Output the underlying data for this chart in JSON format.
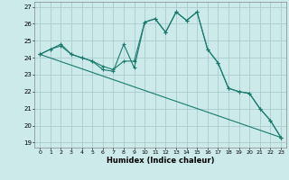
{
  "xlabel": "Humidex (Indice chaleur)",
  "bg_color": "#cceaea",
  "grid_color": "#aacccc",
  "line_color": "#1a7a6e",
  "xlim": [
    -0.5,
    23.5
  ],
  "ylim": [
    18.7,
    27.3
  ],
  "yticks": [
    19,
    20,
    21,
    22,
    23,
    24,
    25,
    26,
    27
  ],
  "xticks": [
    0,
    1,
    2,
    3,
    4,
    5,
    6,
    7,
    8,
    9,
    10,
    11,
    12,
    13,
    14,
    15,
    16,
    17,
    18,
    19,
    20,
    21,
    22,
    23
  ],
  "line1_x": [
    0,
    1,
    2,
    3,
    4,
    5,
    6,
    7,
    8,
    9,
    10,
    11,
    12,
    13,
    14,
    15,
    16,
    17,
    18,
    19,
    20,
    21,
    22,
    23
  ],
  "line1_y": [
    24.2,
    24.5,
    24.8,
    24.2,
    24.0,
    23.8,
    23.3,
    23.2,
    24.8,
    23.4,
    26.1,
    26.3,
    25.5,
    26.7,
    26.2,
    26.7,
    24.5,
    23.7,
    22.2,
    22.0,
    21.9,
    21.0,
    20.3,
    19.3
  ],
  "line2_x": [
    0,
    1,
    2,
    3,
    4,
    5,
    6,
    7,
    8,
    9,
    10,
    11,
    12,
    13,
    14,
    15,
    16,
    17,
    18,
    19,
    20,
    21,
    22,
    23
  ],
  "line2_y": [
    24.2,
    24.5,
    24.7,
    24.2,
    24.0,
    23.8,
    23.5,
    23.3,
    23.8,
    23.8,
    26.1,
    26.3,
    25.5,
    26.7,
    26.2,
    26.7,
    24.5,
    23.7,
    22.2,
    22.0,
    21.9,
    21.0,
    20.3,
    19.3
  ],
  "line3_x": [
    0,
    23
  ],
  "line3_y": [
    24.2,
    19.3
  ]
}
